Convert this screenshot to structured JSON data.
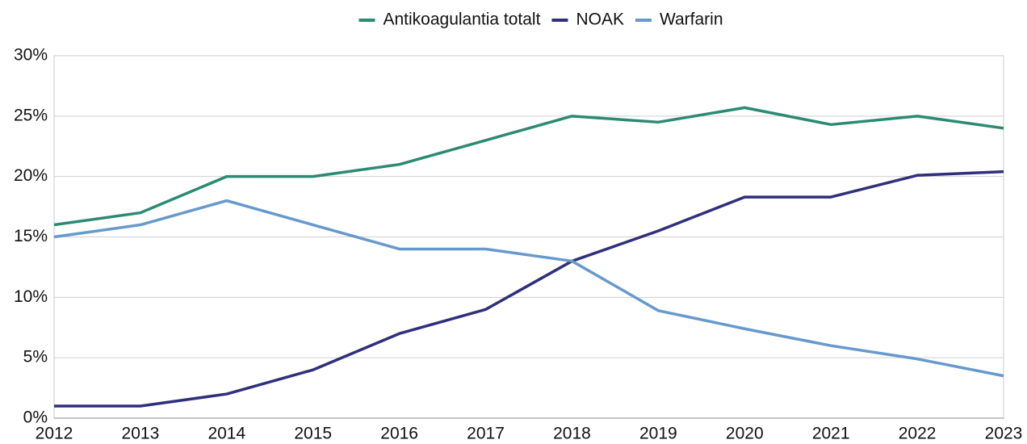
{
  "chart_data": {
    "type": "line",
    "categories": [
      "2012",
      "2013",
      "2014",
      "2015",
      "2016",
      "2017",
      "2018",
      "2019",
      "2020",
      "2021",
      "2022",
      "2023"
    ],
    "series": [
      {
        "name": "Antikoagulantia totalt",
        "color": "#2b8a72",
        "values": [
          16,
          17,
          20,
          20,
          21,
          23,
          25,
          24.5,
          25.7,
          24.3,
          25,
          24
        ]
      },
      {
        "name": "NOAK",
        "color": "#2f2f7c",
        "values": [
          1,
          1,
          2,
          4,
          7,
          9,
          13,
          15.5,
          18.3,
          18.3,
          20.1,
          20.4
        ]
      },
      {
        "name": "Warfarin",
        "color": "#6699cc",
        "values": [
          15,
          16,
          18,
          16,
          14,
          14,
          13,
          8.9,
          7.4,
          6,
          4.9,
          3.5
        ]
      }
    ],
    "ylim": [
      0,
      30
    ],
    "yticks": [
      {
        "value": 0,
        "label": "0%"
      },
      {
        "value": 5,
        "label": "5%"
      },
      {
        "value": 10,
        "label": "10%"
      },
      {
        "value": 15,
        "label": "15%"
      },
      {
        "value": 20,
        "label": "20%"
      },
      {
        "value": 25,
        "label": "25%"
      },
      {
        "value": 30,
        "label": "30%"
      }
    ],
    "grid": true,
    "legend": "top"
  }
}
